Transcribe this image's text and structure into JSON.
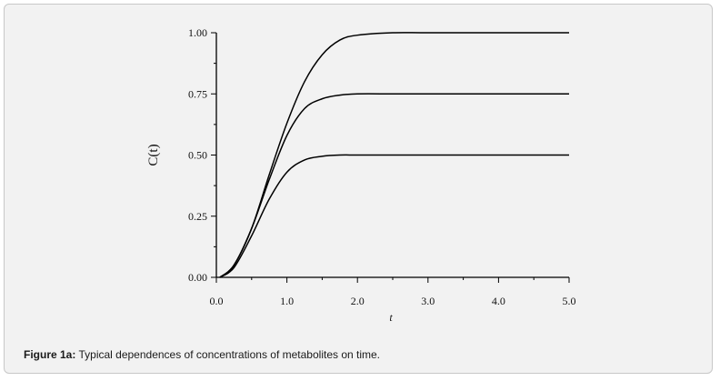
{
  "caption": {
    "label": "Figure 1a:",
    "text": " Typical dependences of concentrations of metabolites on time."
  },
  "chart_data": {
    "type": "line",
    "title": "",
    "xlabel": "t",
    "ylabel": "C(t)",
    "xlim": [
      0,
      5
    ],
    "ylim": [
      0,
      1
    ],
    "xticks": [
      0,
      1,
      2,
      3,
      4,
      5
    ],
    "xtick_labels": [
      "0.0",
      "1.0",
      "2.0",
      "3.0",
      "4.0",
      "5.0"
    ],
    "yticks": [
      0,
      0.25,
      0.5,
      0.75,
      1
    ],
    "ytick_labels": [
      "0.00",
      "0.25",
      "0.50",
      "0.75",
      "1.00"
    ],
    "grid": false,
    "legend": "none",
    "line_color": "#000000",
    "series": [
      {
        "x": [
          0.05,
          0.25,
          0.5,
          0.75,
          1.0,
          1.25,
          1.5,
          1.75,
          2.0,
          2.5,
          3.0,
          4.0,
          5.0
        ],
        "values": [
          0.0,
          0.05,
          0.2,
          0.42,
          0.63,
          0.8,
          0.91,
          0.97,
          0.99,
          1.0,
          1.0,
          1.0,
          1.0
        ]
      },
      {
        "x": [
          0.05,
          0.25,
          0.5,
          0.75,
          1.0,
          1.25,
          1.5,
          1.75,
          2.0,
          2.5,
          3.0,
          4.0,
          5.0
        ],
        "values": [
          0.0,
          0.05,
          0.2,
          0.4,
          0.58,
          0.69,
          0.73,
          0.745,
          0.75,
          0.75,
          0.75,
          0.75,
          0.75
        ]
      },
      {
        "x": [
          0.05,
          0.25,
          0.5,
          0.75,
          1.0,
          1.25,
          1.5,
          1.75,
          2.0,
          2.5,
          3.0,
          4.0,
          5.0
        ],
        "values": [
          0.0,
          0.04,
          0.17,
          0.32,
          0.43,
          0.48,
          0.495,
          0.5,
          0.5,
          0.5,
          0.5,
          0.5,
          0.5
        ]
      }
    ]
  }
}
